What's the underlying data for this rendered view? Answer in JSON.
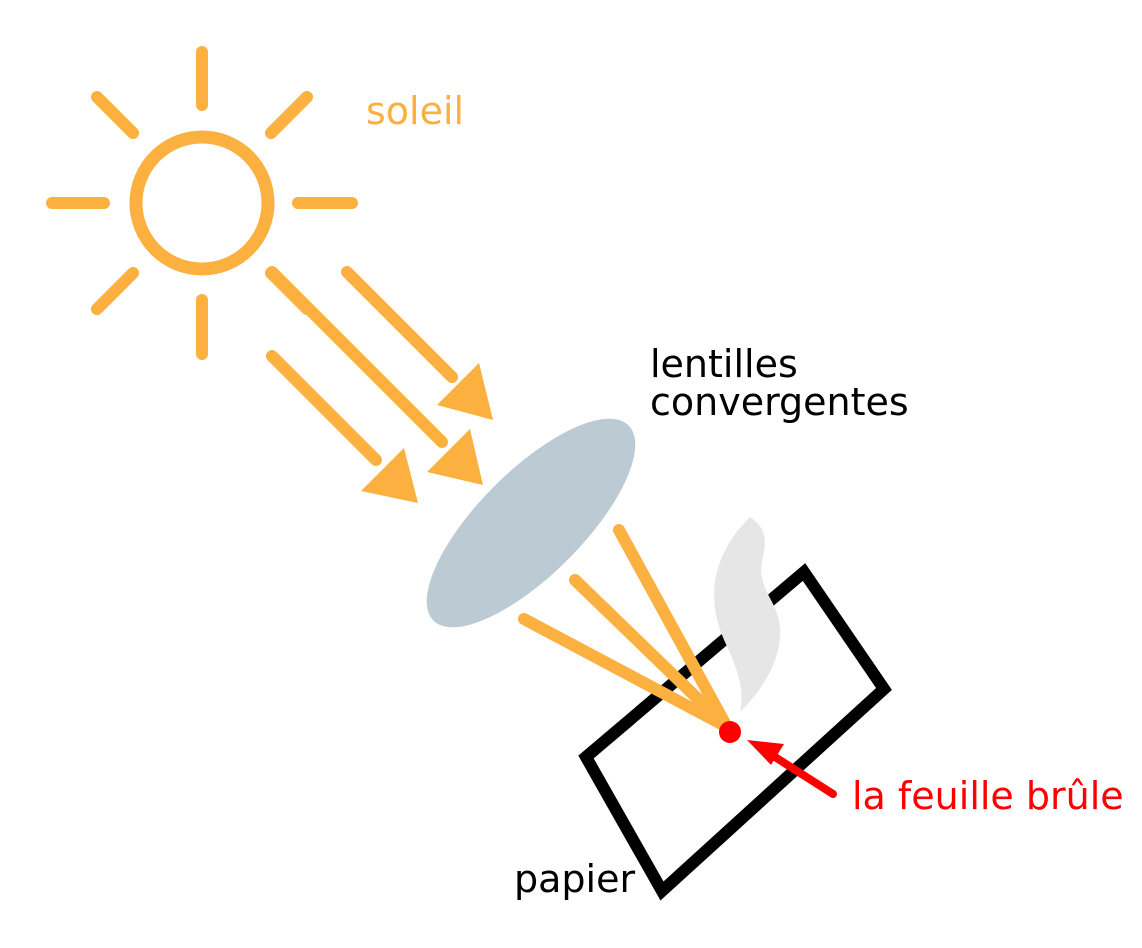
{
  "labels": {
    "sun": "soleil",
    "lens_line1": "lentilles",
    "lens_line2": "convergentes",
    "paper": "papier",
    "burn": "la feuille brûle"
  },
  "colors": {
    "sun": "#FBB040",
    "lens": "#BCCBD3",
    "paper": "#000000",
    "burn": "#FF0000",
    "smoke": "#E6E6E6",
    "background": "#FFFFFF"
  },
  "icons": {
    "sun": "sun-icon",
    "lens": "lens-icon",
    "paper": "paper-sheet-icon",
    "smoke": "smoke-icon",
    "burn_point": "burn-point-icon"
  }
}
